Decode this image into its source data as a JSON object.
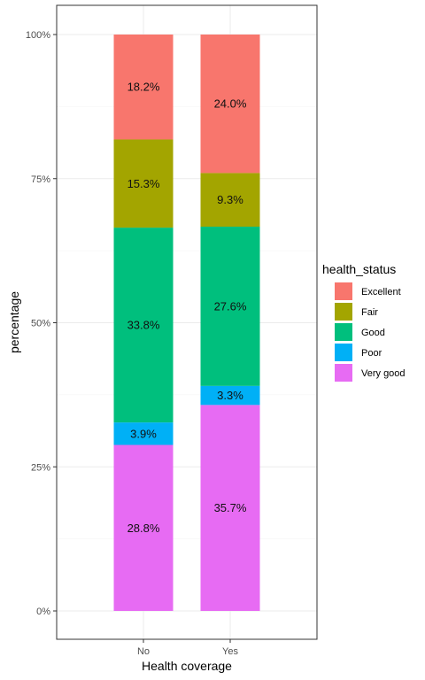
{
  "chart_data": {
    "type": "bar",
    "stacked": true,
    "percent": true,
    "title": "",
    "xlabel": "Health coverage",
    "ylabel": "percentage",
    "categories": [
      "No",
      "Yes"
    ],
    "ylim": [
      0,
      100
    ],
    "yticks": [
      {
        "value": 0,
        "label": "0%"
      },
      {
        "value": 25,
        "label": "25%"
      },
      {
        "value": 50,
        "label": "50%"
      },
      {
        "value": 75,
        "label": "75%"
      },
      {
        "value": 100,
        "label": "100%"
      }
    ],
    "stack_order_bottom_to_top": [
      "Very good",
      "Poor",
      "Good",
      "Fair",
      "Excellent"
    ],
    "series": [
      {
        "name": "Excellent",
        "color": "#F8766D",
        "values": [
          18.2,
          24.0
        ],
        "labels": [
          "18.2%",
          "24.0%"
        ]
      },
      {
        "name": "Fair",
        "color": "#A3A500",
        "values": [
          15.3,
          9.3
        ],
        "labels": [
          "15.3%",
          "9.3%"
        ]
      },
      {
        "name": "Good",
        "color": "#00BF7D",
        "values": [
          33.8,
          27.6
        ],
        "labels": [
          "33.8%",
          "27.6%"
        ]
      },
      {
        "name": "Poor",
        "color": "#00B0F6",
        "values": [
          3.9,
          3.3
        ],
        "labels": [
          "3.9%",
          "3.3%"
        ]
      },
      {
        "name": "Very good",
        "color": "#E76BF3",
        "values": [
          28.8,
          35.7
        ],
        "labels": [
          "28.8%",
          "35.7%"
        ]
      }
    ],
    "legend": {
      "title": "health_status",
      "position": "right"
    },
    "grid": true,
    "panel_border": true
  }
}
